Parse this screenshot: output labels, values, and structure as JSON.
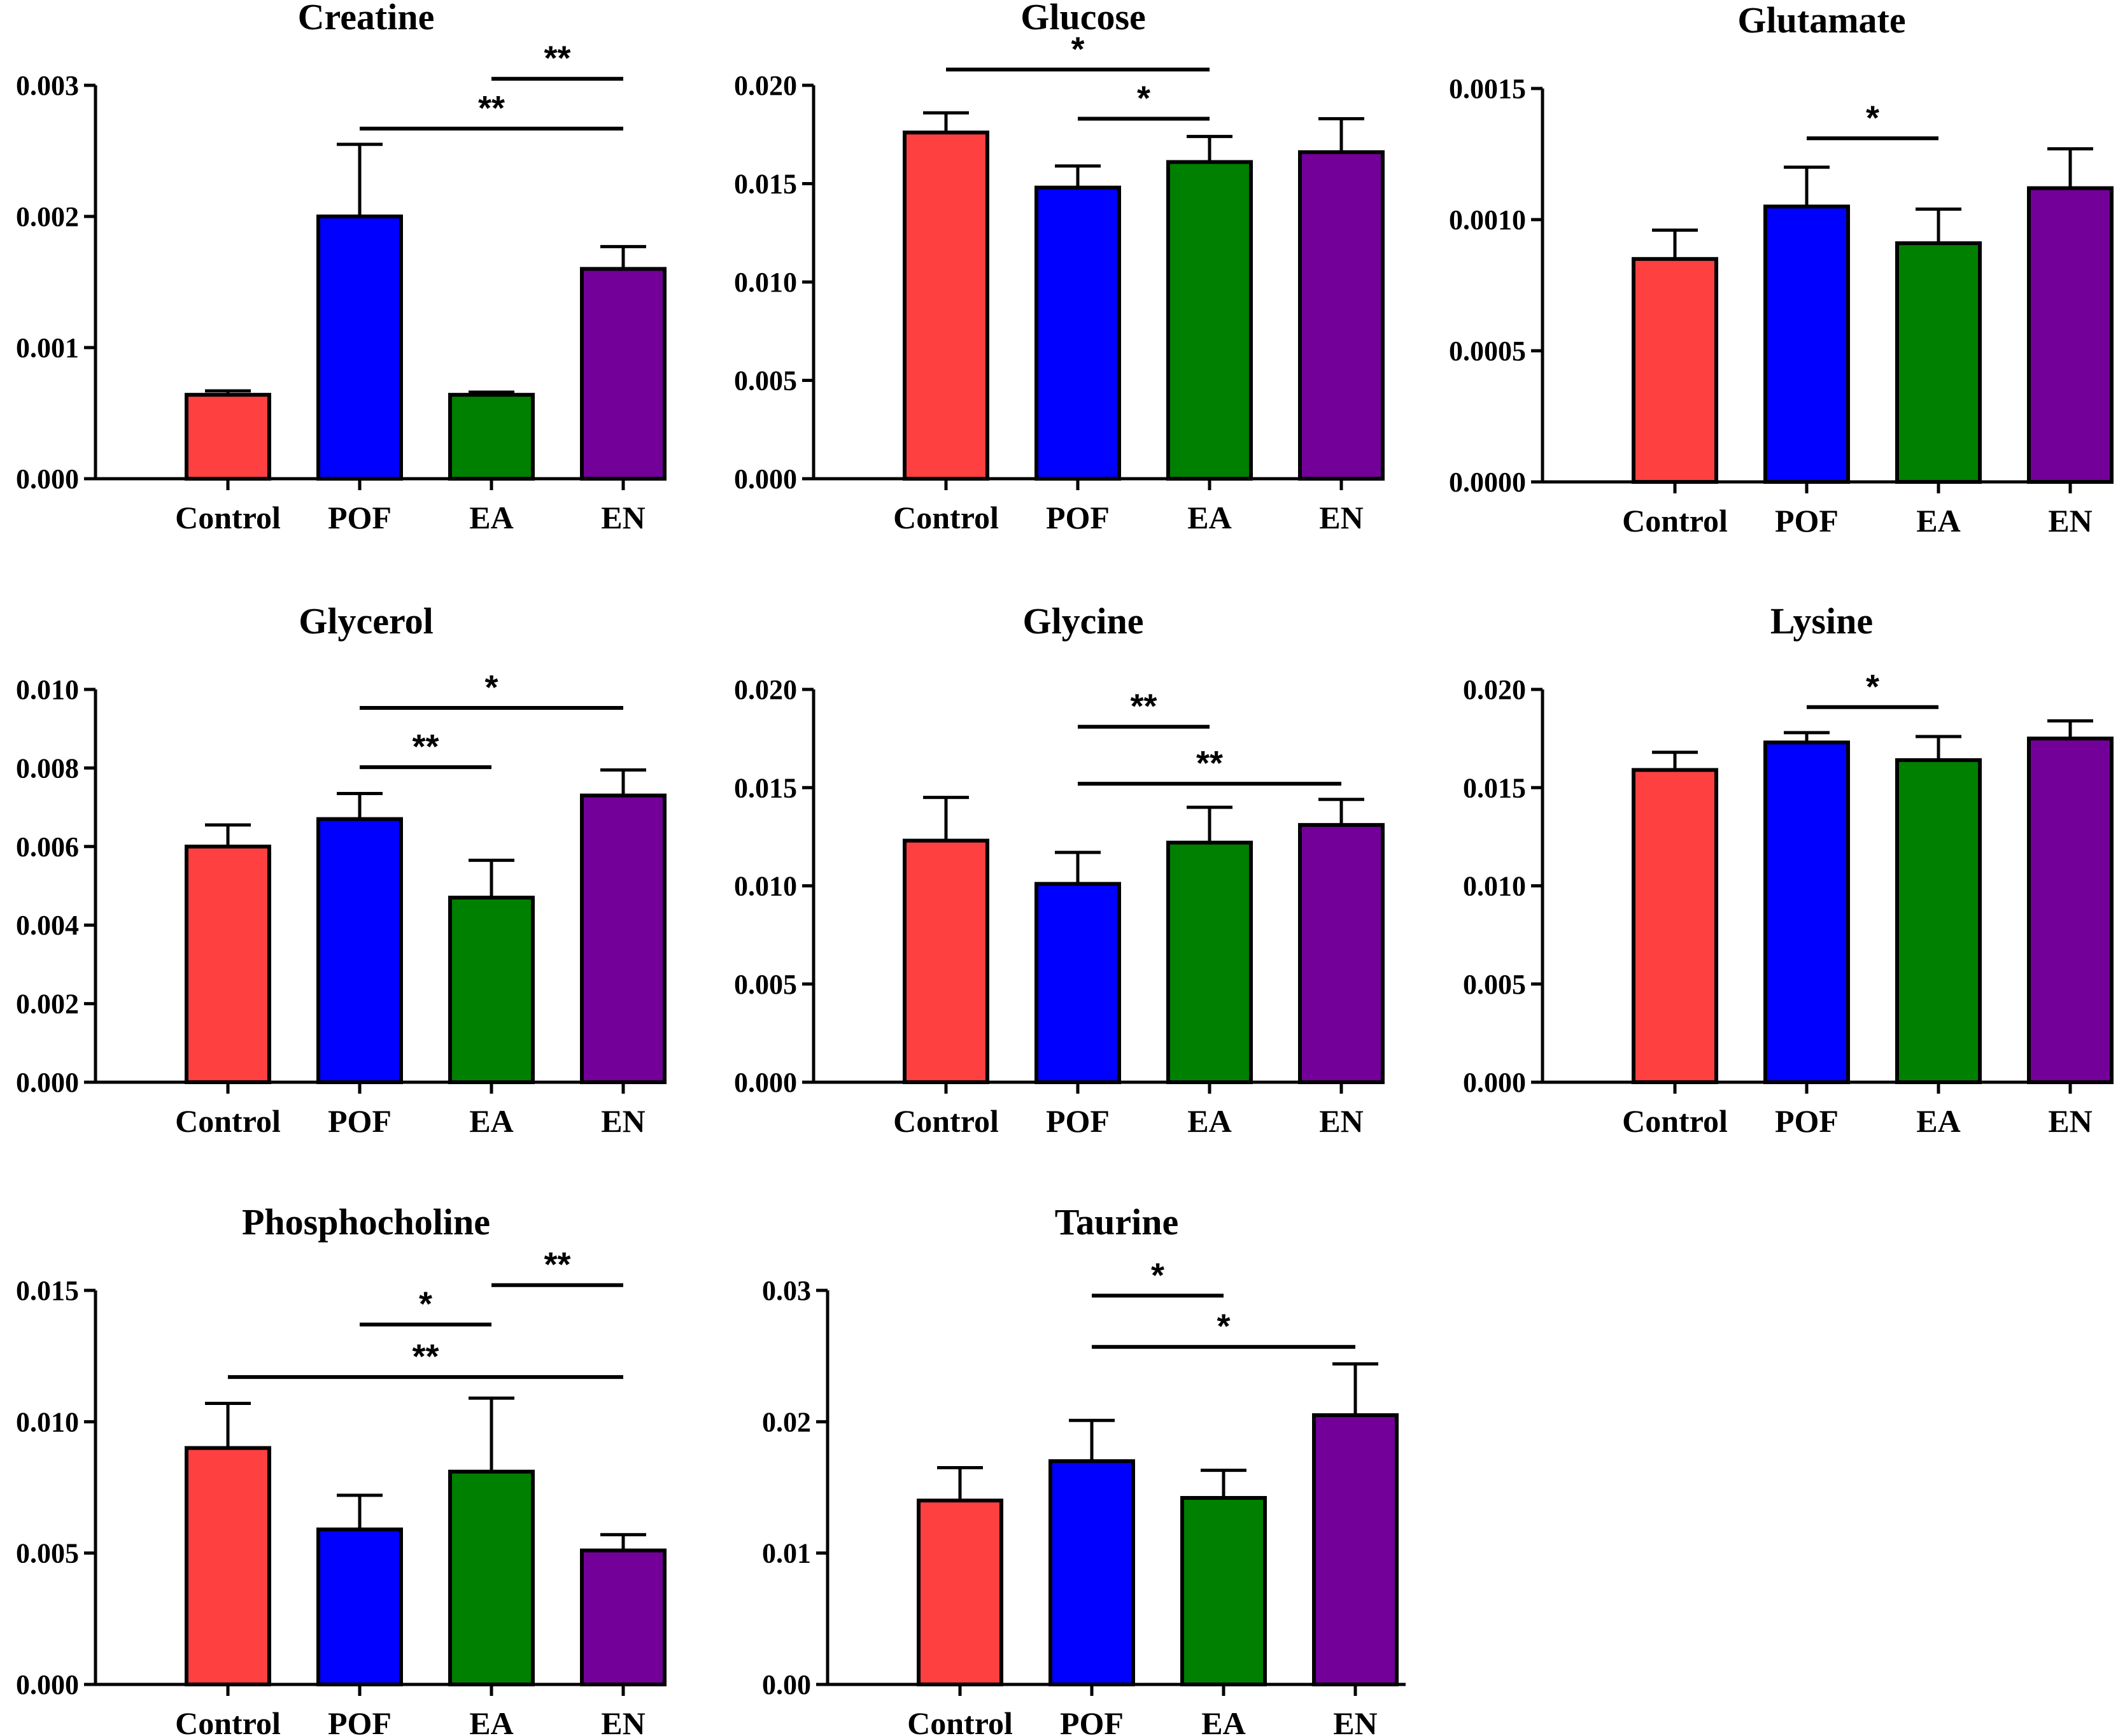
{
  "chart_data": [
    {
      "type": "bar",
      "title": "Creatine",
      "categories": [
        "Control",
        "POF",
        "EA",
        "EN"
      ],
      "values": [
        0.00064,
        0.002,
        0.00064,
        0.0016
      ],
      "errors": [
        3e-05,
        0.00055,
        2e-05,
        0.00017
      ],
      "ylim": [
        0,
        0.003
      ],
      "yticks": [
        "0.000",
        "0.001",
        "0.002",
        "0.003"
      ],
      "colors": [
        "#ff4040",
        "#0000ff",
        "#008000",
        "#730099"
      ],
      "significance": [
        {
          "from": 2,
          "to": 3,
          "label": "**",
          "y": 0.00305
        },
        {
          "from": 1,
          "to": 3,
          "label": "**",
          "y": 0.00267
        }
      ]
    },
    {
      "type": "bar",
      "title": "Glucose",
      "categories": [
        "Control",
        "POF",
        "EA",
        "EN"
      ],
      "values": [
        0.0176,
        0.0148,
        0.0161,
        0.0166
      ],
      "errors": [
        0.001,
        0.0011,
        0.0013,
        0.0017
      ],
      "ylim": [
        0,
        0.02
      ],
      "yticks": [
        "0.000",
        "0.005",
        "0.010",
        "0.015",
        "0.020"
      ],
      "colors": [
        "#ff4040",
        "#0000ff",
        "#008000",
        "#730099"
      ],
      "significance": [
        {
          "from": 0,
          "to": 2,
          "label": "*",
          "y": 0.0208
        },
        {
          "from": 1,
          "to": 2,
          "label": "*",
          "y": 0.0183
        }
      ]
    },
    {
      "type": "bar",
      "title": "Glutamate",
      "categories": [
        "Control",
        "POF",
        "EA",
        "EN"
      ],
      "values": [
        0.00085,
        0.00105,
        0.00091,
        0.00112
      ],
      "errors": [
        0.00011,
        0.00015,
        0.00013,
        0.00015
      ],
      "ylim": [
        0,
        0.0015
      ],
      "yticks": [
        "0.0000",
        "0.0005",
        "0.0010",
        "0.0015"
      ],
      "colors": [
        "#ff4040",
        "#0000ff",
        "#008000",
        "#730099"
      ],
      "significance": [
        {
          "from": 1,
          "to": 2,
          "label": "*",
          "y": 0.00131
        }
      ]
    },
    {
      "type": "bar",
      "title": "Glycerol",
      "categories": [
        "Control",
        "POF",
        "EA",
        "EN"
      ],
      "values": [
        0.006,
        0.0067,
        0.0047,
        0.0073
      ],
      "errors": [
        0.00055,
        0.00065,
        0.00095,
        0.00065
      ],
      "ylim": [
        0,
        0.01
      ],
      "yticks": [
        "0.000",
        "0.002",
        "0.004",
        "0.006",
        "0.008",
        "0.010"
      ],
      "colors": [
        "#ff4040",
        "#0000ff",
        "#008000",
        "#730099"
      ],
      "significance": [
        {
          "from": 1,
          "to": 3,
          "label": "*",
          "y": 0.00953
        },
        {
          "from": 1,
          "to": 2,
          "label": "**",
          "y": 0.00802
        }
      ]
    },
    {
      "type": "bar",
      "title": "Glycine",
      "categories": [
        "Control",
        "POF",
        "EA",
        "EN"
      ],
      "values": [
        0.0123,
        0.0101,
        0.0122,
        0.0131
      ],
      "errors": [
        0.0022,
        0.0016,
        0.0018,
        0.0013
      ],
      "ylim": [
        0,
        0.02
      ],
      "yticks": [
        "0.000",
        "0.005",
        "0.010",
        "0.015",
        "0.020"
      ],
      "colors": [
        "#ff4040",
        "#0000ff",
        "#008000",
        "#730099"
      ],
      "significance": [
        {
          "from": 1,
          "to": 2,
          "label": "**",
          "y": 0.0181
        },
        {
          "from": 1,
          "to": 3,
          "label": "**",
          "y": 0.0152
        }
      ]
    },
    {
      "type": "bar",
      "title": "Lysine",
      "categories": [
        "Control",
        "POF",
        "EA",
        "EN"
      ],
      "values": [
        0.0159,
        0.0173,
        0.0164,
        0.0175
      ],
      "errors": [
        0.0009,
        0.0005,
        0.0012,
        0.0009
      ],
      "ylim": [
        0,
        0.02
      ],
      "yticks": [
        "0.000",
        "0.005",
        "0.010",
        "0.015",
        "0.020"
      ],
      "colors": [
        "#ff4040",
        "#0000ff",
        "#008000",
        "#730099"
      ],
      "significance": [
        {
          "from": 1,
          "to": 2,
          "label": "*",
          "y": 0.0191
        }
      ]
    },
    {
      "type": "bar",
      "title": "Phosphocholine",
      "categories": [
        "Control",
        "POF",
        "EA",
        "EN"
      ],
      "values": [
        0.009,
        0.0059,
        0.0081,
        0.0051
      ],
      "errors": [
        0.0017,
        0.0013,
        0.0028,
        0.0006
      ],
      "ylim": [
        0,
        0.015
      ],
      "yticks": [
        "0.000",
        "0.005",
        "0.010",
        "0.015"
      ],
      "colors": [
        "#ff4040",
        "#0000ff",
        "#008000",
        "#730099"
      ],
      "significance": [
        {
          "from": 2,
          "to": 3,
          "label": "**",
          "y": 0.0152
        },
        {
          "from": 1,
          "to": 2,
          "label": "*",
          "y": 0.0137
        },
        {
          "from": 0,
          "to": 3,
          "label": "**",
          "y": 0.0117
        }
      ]
    },
    {
      "type": "bar",
      "title": "Taurine",
      "categories": [
        "Control",
        "POF",
        "EA",
        "EN"
      ],
      "values": [
        0.014,
        0.017,
        0.0142,
        0.0205
      ],
      "errors": [
        0.0025,
        0.0031,
        0.0021,
        0.0039
      ],
      "ylim": [
        0,
        0.03
      ],
      "yticks": [
        "0.00",
        "0.01",
        "0.02",
        "0.03"
      ],
      "colors": [
        "#ff4040",
        "#0000ff",
        "#008000",
        "#730099"
      ],
      "significance": [
        {
          "from": 1,
          "to": 2,
          "label": "*",
          "y": 0.0296
        },
        {
          "from": 1,
          "to": 3,
          "label": "*",
          "y": 0.0257
        }
      ]
    }
  ]
}
